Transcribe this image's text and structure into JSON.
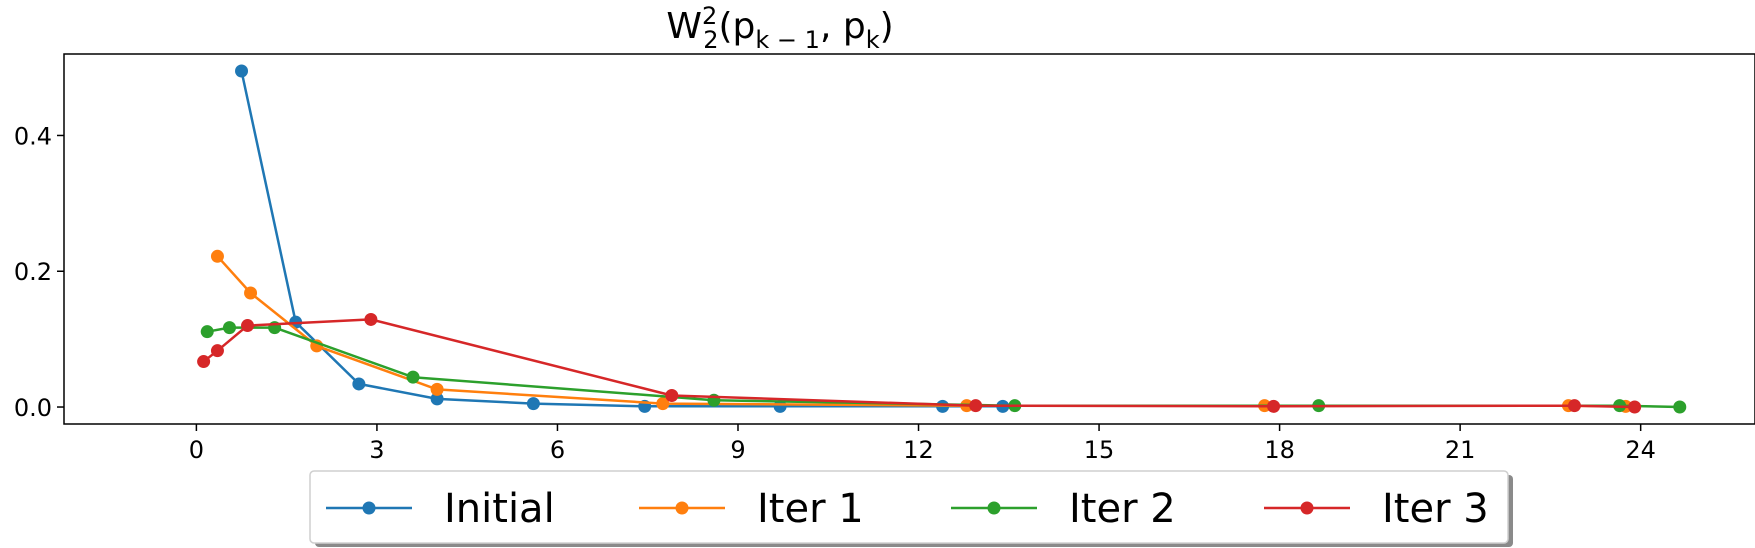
{
  "chart_data": {
    "type": "line",
    "title": {
      "main": "W",
      "sup": "2",
      "sub": "2",
      "open": "(p",
      "sub1": "k − 1",
      "sep": ", p",
      "sub2": "k",
      "close": ")"
    },
    "xlabel": "",
    "ylabel": "",
    "xlim": [
      -2.2,
      25.9
    ],
    "ylim": [
      -0.025,
      0.52
    ],
    "xticks": [
      0,
      3,
      6,
      9,
      12,
      15,
      18,
      21,
      24
    ],
    "yticks": [
      0.0,
      0.2,
      0.4
    ],
    "ytick_labels": [
      "0.0",
      "0.2",
      "0.4"
    ],
    "grid": false,
    "legend_position": "bottom-center",
    "series": [
      {
        "name": "Initial",
        "color": "#1f77b4",
        "x": [
          0.75,
          1.65,
          2.7,
          4.0,
          5.6,
          7.45,
          9.7,
          12.4,
          13.4
        ],
        "y": [
          0.495,
          0.125,
          0.034,
          0.012,
          0.005,
          0.001,
          0.001,
          0.001,
          0.001
        ]
      },
      {
        "name": "Iter 1",
        "color": "#ff7f0e",
        "x": [
          0.35,
          0.9,
          2.0,
          4.0,
          7.75,
          12.8,
          17.75,
          22.8,
          23.75
        ],
        "y": [
          0.222,
          0.168,
          0.09,
          0.026,
          0.005,
          0.002,
          0.002,
          0.002,
          0.001
        ]
      },
      {
        "name": "Iter 2",
        "color": "#2ca02c",
        "x": [
          0.18,
          0.55,
          1.3,
          3.6,
          8.6,
          13.6,
          18.65,
          23.65,
          24.65
        ],
        "y": [
          0.111,
          0.117,
          0.117,
          0.044,
          0.01,
          0.002,
          0.002,
          0.002,
          0.0
        ]
      },
      {
        "name": "Iter 3",
        "color": "#d62728",
        "x": [
          0.12,
          0.35,
          0.85,
          2.9,
          7.9,
          12.95,
          17.9,
          22.9,
          23.9
        ],
        "y": [
          0.067,
          0.083,
          0.12,
          0.129,
          0.017,
          0.002,
          0.001,
          0.002,
          0.0
        ]
      }
    ]
  }
}
